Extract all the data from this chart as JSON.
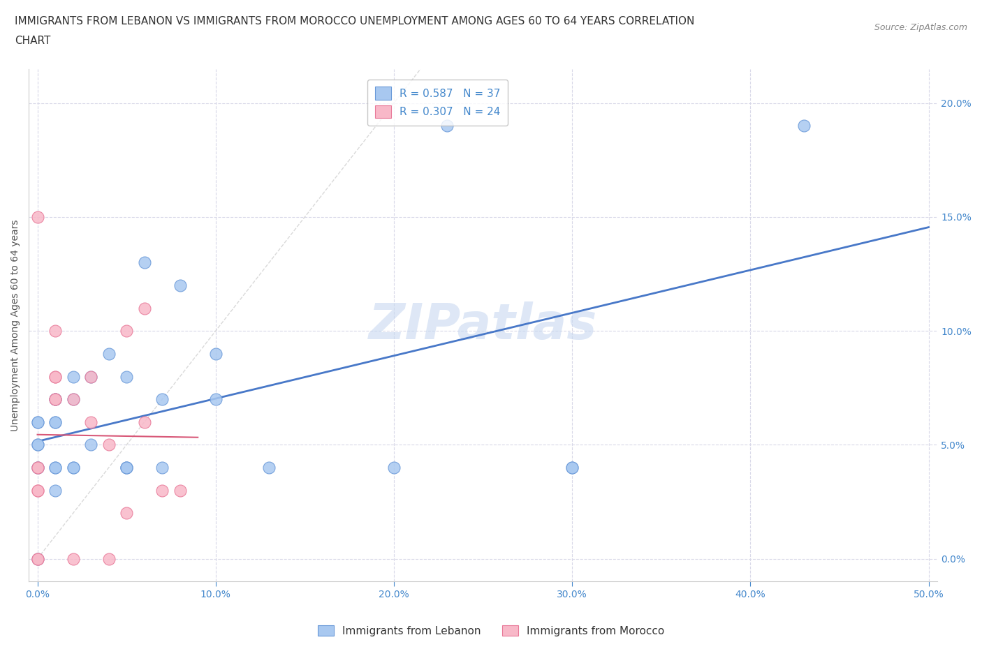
{
  "title_line1": "IMMIGRANTS FROM LEBANON VS IMMIGRANTS FROM MOROCCO UNEMPLOYMENT AMONG AGES 60 TO 64 YEARS CORRELATION",
  "title_line2": "CHART",
  "source_text": "Source: ZipAtlas.com",
  "ylabel": "Unemployment Among Ages 60 to 64 years",
  "watermark": "ZIPatlas",
  "lebanon_R": 0.587,
  "lebanon_N": 37,
  "morocco_R": 0.307,
  "morocco_N": 24,
  "xlim": [
    -0.005,
    0.505
  ],
  "ylim": [
    -0.01,
    0.215
  ],
  "xticks": [
    0.0,
    0.1,
    0.2,
    0.3,
    0.4,
    0.5
  ],
  "yticks": [
    0.0,
    0.05,
    0.1,
    0.15,
    0.2
  ],
  "lebanon_color": "#A8C8F0",
  "morocco_color": "#F8B8C8",
  "lebanon_edge_color": "#6898D8",
  "morocco_edge_color": "#E87898",
  "lebanon_line_color": "#4878C8",
  "morocco_line_color": "#D85878",
  "ref_line_color": "#D0D0D0",
  "lebanon_x": [
    0.0,
    0.0,
    0.0,
    0.0,
    0.0,
    0.0,
    0.0,
    0.01,
    0.01,
    0.01,
    0.01,
    0.01,
    0.01,
    0.01,
    0.02,
    0.02,
    0.02,
    0.02,
    0.03,
    0.03,
    0.04,
    0.05,
    0.05,
    0.05,
    0.05,
    0.06,
    0.07,
    0.07,
    0.08,
    0.1,
    0.1,
    0.13,
    0.2,
    0.23,
    0.3,
    0.3,
    0.43
  ],
  "lebanon_y": [
    0.04,
    0.04,
    0.05,
    0.05,
    0.06,
    0.06,
    0.0,
    0.06,
    0.06,
    0.07,
    0.07,
    0.04,
    0.04,
    0.03,
    0.07,
    0.08,
    0.04,
    0.04,
    0.08,
    0.05,
    0.09,
    0.04,
    0.04,
    0.08,
    0.04,
    0.13,
    0.07,
    0.04,
    0.12,
    0.09,
    0.07,
    0.04,
    0.04,
    0.19,
    0.04,
    0.04,
    0.19
  ],
  "morocco_x": [
    0.0,
    0.0,
    0.0,
    0.0,
    0.0,
    0.0,
    0.0,
    0.01,
    0.01,
    0.01,
    0.01,
    0.01,
    0.02,
    0.02,
    0.03,
    0.03,
    0.04,
    0.04,
    0.05,
    0.05,
    0.06,
    0.06,
    0.07,
    0.08
  ],
  "morocco_y": [
    0.03,
    0.03,
    0.04,
    0.04,
    0.0,
    0.0,
    0.15,
    0.07,
    0.07,
    0.08,
    0.08,
    0.1,
    0.07,
    0.0,
    0.06,
    0.08,
    0.05,
    0.0,
    0.02,
    0.1,
    0.06,
    0.11,
    0.03,
    0.03
  ],
  "background_color": "#FFFFFF",
  "grid_color": "#D8D8E8",
  "title_fontsize": 11,
  "axis_label_fontsize": 10,
  "tick_fontsize": 10,
  "legend_fontsize": 11,
  "watermark_fontsize": 52,
  "watermark_color": "#C8D8F0",
  "watermark_alpha": 0.6
}
